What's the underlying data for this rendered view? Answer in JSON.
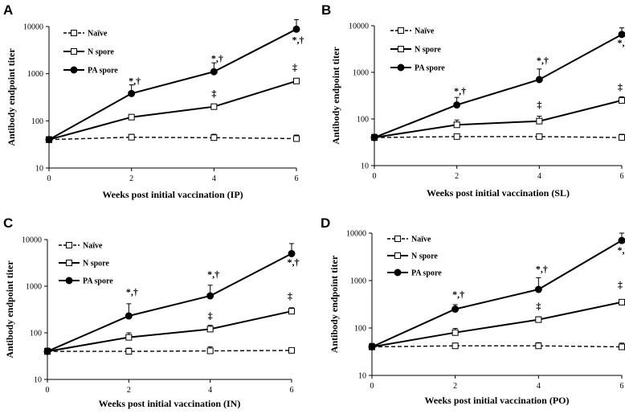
{
  "chart_data": [
    {
      "type": "line",
      "panel": "A",
      "xlabel": "Weeks post initial vaccination (IP)",
      "ylabel": "Antibody endpoint titer",
      "yscale": "log",
      "ylim": [
        10,
        10000
      ],
      "xlim": [
        0,
        6
      ],
      "x": [
        0,
        2,
        4,
        6
      ],
      "x_ticks": [
        "0",
        "2",
        "4",
        "6"
      ],
      "y_ticks": [
        "10",
        "100",
        "1000",
        "10000"
      ],
      "legend_position": "top-left",
      "series": [
        {
          "name": "Naïve",
          "style": "dashed-open-square",
          "values": [
            40,
            45,
            44,
            42
          ],
          "err_upper": [
            46,
            52,
            52,
            50
          ]
        },
        {
          "name": "N spore",
          "style": "solid-open-square",
          "values": [
            40,
            120,
            200,
            700
          ],
          "err_upper": [
            46,
            135,
            225,
            780
          ]
        },
        {
          "name": "PA spore",
          "style": "solid-filled-circle",
          "values": [
            40,
            380,
            1100,
            8800
          ],
          "err_upper": [
            46,
            580,
            1700,
            14000
          ]
        }
      ],
      "annotations": [
        {
          "x": 2,
          "value": 600,
          "text": "*,†"
        },
        {
          "x": 4,
          "value": 1800,
          "text": "*,†"
        },
        {
          "x": 4,
          "value": 330,
          "text": "‡"
        },
        {
          "x": 6,
          "value": 4500,
          "text": "*,†"
        },
        {
          "x": 6,
          "value": 1180,
          "text": "‡"
        }
      ]
    },
    {
      "type": "line",
      "panel": "B",
      "xlabel": "Weeks post initial vaccination (SL)",
      "ylabel": "Antibody endpoint titer",
      "yscale": "log",
      "ylim": [
        10,
        10000
      ],
      "xlim": [
        0,
        6
      ],
      "x": [
        0,
        2,
        4,
        6
      ],
      "x_ticks": [
        "0",
        "2",
        "4",
        "6"
      ],
      "y_ticks": [
        "10",
        "100",
        "1000",
        "10000"
      ],
      "legend_position": "top-left",
      "series": [
        {
          "name": "Naïve",
          "style": "dashed-open-square",
          "values": [
            40,
            42,
            42,
            40
          ],
          "err_upper": [
            47,
            48,
            48,
            47
          ]
        },
        {
          "name": "N spore",
          "style": "solid-open-square",
          "values": [
            40,
            75,
            90,
            250
          ],
          "err_upper": [
            47,
            95,
            115,
            300
          ]
        },
        {
          "name": "PA spore",
          "style": "solid-filled-circle",
          "values": [
            40,
            200,
            700,
            6500
          ],
          "err_upper": [
            47,
            290,
            1180,
            9000
          ]
        }
      ],
      "annotations": [
        {
          "x": 2,
          "value": 340,
          "text": "*,†"
        },
        {
          "x": 4,
          "value": 1550,
          "text": "*,†"
        },
        {
          "x": 4,
          "value": 175,
          "text": "‡"
        },
        {
          "x": 6,
          "value": 3700,
          "text": "*,†"
        },
        {
          "x": 6,
          "value": 420,
          "text": "‡"
        }
      ]
    },
    {
      "type": "line",
      "panel": "C",
      "xlabel": "Weeks post initial vaccination (IN)",
      "ylabel": "Antibody endpoint titer",
      "yscale": "log",
      "ylim": [
        10,
        10000
      ],
      "xlim": [
        0,
        6
      ],
      "x": [
        0,
        2,
        4,
        6
      ],
      "x_ticks": [
        "0",
        "2",
        "4",
        "6"
      ],
      "y_ticks": [
        "10",
        "100",
        "1000",
        "10000"
      ],
      "legend_position": "top-left",
      "series": [
        {
          "name": "Naïve",
          "style": "dashed-open-square",
          "values": [
            40,
            40,
            41,
            42
          ],
          "err_upper": [
            47,
            47,
            50,
            48
          ]
        },
        {
          "name": "N spore",
          "style": "solid-open-square",
          "values": [
            40,
            80,
            120,
            290
          ],
          "err_upper": [
            47,
            100,
            145,
            345
          ]
        },
        {
          "name": "PA spore",
          "style": "solid-filled-circle",
          "values": [
            40,
            230,
            620,
            5000
          ],
          "err_upper": [
            47,
            420,
            1050,
            8200
          ]
        }
      ],
      "annotations": [
        {
          "x": 2,
          "value": 650,
          "text": "*,†"
        },
        {
          "x": 4,
          "value": 1550,
          "text": "*,†"
        },
        {
          "x": 4,
          "value": 200,
          "text": "‡"
        },
        {
          "x": 6,
          "value": 2800,
          "text": "*,†"
        },
        {
          "x": 6,
          "value": 530,
          "text": "‡"
        }
      ]
    },
    {
      "type": "line",
      "panel": "D",
      "xlabel": "Weeks post initial vaccination (PO)",
      "ylabel": "Antibody endpoint titer",
      "yscale": "log",
      "ylim": [
        10,
        10000
      ],
      "xlim": [
        0,
        6
      ],
      "x": [
        0,
        2,
        4,
        6
      ],
      "x_ticks": [
        "0",
        "2",
        "4",
        "6"
      ],
      "y_ticks": [
        "10",
        "100",
        "1000",
        "10000"
      ],
      "legend_position": "top-left",
      "series": [
        {
          "name": "Naïve",
          "style": "dashed-open-square",
          "values": [
            40,
            42,
            42,
            40
          ],
          "err_upper": [
            47,
            48,
            49,
            48
          ]
        },
        {
          "name": "N spore",
          "style": "solid-open-square",
          "values": [
            40,
            80,
            150,
            350
          ],
          "err_upper": [
            47,
            98,
            172,
            380
          ]
        },
        {
          "name": "PA spore",
          "style": "solid-filled-circle",
          "values": [
            40,
            250,
            650,
            7000
          ],
          "err_upper": [
            47,
            310,
            1150,
            10000
          ]
        }
      ],
      "annotations": [
        {
          "x": 2,
          "value": 440,
          "text": "*,†"
        },
        {
          "x": 4,
          "value": 1500,
          "text": "*,†"
        },
        {
          "x": 4,
          "value": 250,
          "text": "‡"
        },
        {
          "x": 6,
          "value": 3800,
          "text": "*,†"
        },
        {
          "x": 6,
          "value": 700,
          "text": "‡"
        }
      ]
    }
  ]
}
